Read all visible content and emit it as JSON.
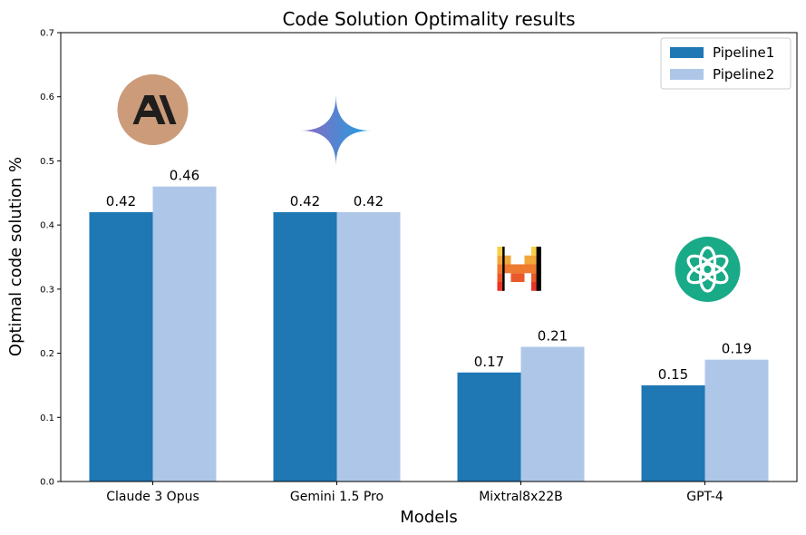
{
  "chart_data": {
    "type": "bar",
    "title": "Code Solution Optimality results",
    "xlabel": "Models",
    "ylabel": "Optimal code solution %",
    "ylim": [
      0,
      0.7
    ],
    "yticks": [
      "0.0",
      "0.1",
      "0.2",
      "0.3",
      "0.4",
      "0.5",
      "0.6",
      "0.7"
    ],
    "categories": [
      "Claude 3 Opus",
      "Gemini 1.5 Pro",
      "Mixtral8x22B",
      "GPT-4"
    ],
    "series": [
      {
        "name": "Pipeline1",
        "values": [
          0.42,
          0.42,
          0.17,
          0.15
        ],
        "labels": [
          "0.42",
          "0.42",
          "0.17",
          "0.15"
        ],
        "color": "#1f77b4"
      },
      {
        "name": "Pipeline2",
        "values": [
          0.46,
          0.42,
          0.21,
          0.19
        ],
        "labels": [
          "0.46",
          "0.42",
          "0.21",
          "0.19"
        ],
        "color": "#aec7e8"
      }
    ],
    "legend": "top-right",
    "grid": false,
    "logos": [
      "anthropic-logo",
      "gemini-logo",
      "mistral-logo",
      "openai-logo"
    ]
  }
}
